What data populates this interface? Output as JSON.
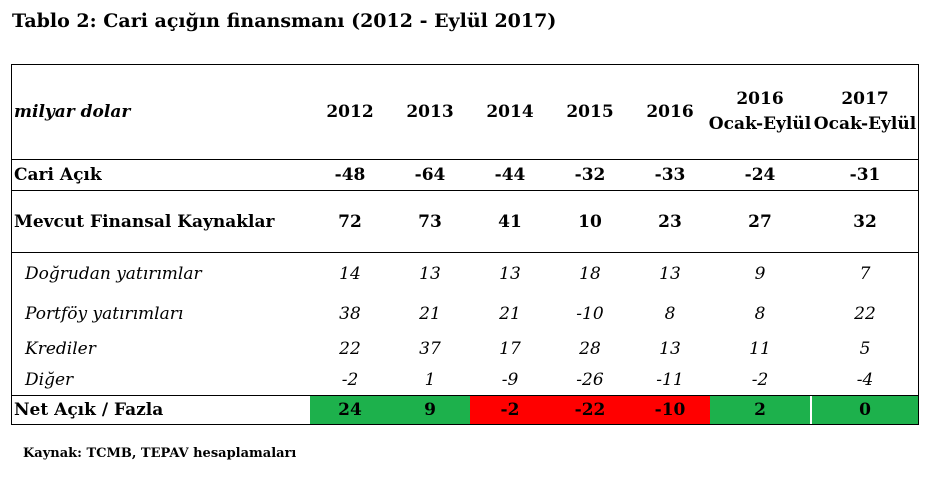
{
  "title": "Tablo 2: Cari açığın finansmanı (2012 - Eylül 2017)",
  "table": {
    "unit_label": "milyar dolar",
    "columns": [
      {
        "line1": "2012",
        "line2": ""
      },
      {
        "line1": "2013",
        "line2": ""
      },
      {
        "line1": "2014",
        "line2": ""
      },
      {
        "line1": "2015",
        "line2": ""
      },
      {
        "line1": "2016",
        "line2": ""
      },
      {
        "line1": "2016",
        "line2": "Ocak-Eylül"
      },
      {
        "line1": "2017",
        "line2": "Ocak-Eylül"
      }
    ],
    "rows": [
      {
        "label": "Cari Açık",
        "style": "bold",
        "values": [
          "-48",
          "-64",
          "-44",
          "-32",
          "-33",
          "-24",
          "-31"
        ]
      },
      {
        "label": "Mevcut Finansal Kaynaklar",
        "style": "bold",
        "values": [
          "72",
          "73",
          "41",
          "10",
          "23",
          "27",
          "32"
        ]
      },
      {
        "label": "Doğrudan yatırımlar",
        "style": "italic",
        "values": [
          "14",
          "13",
          "13",
          "18",
          "13",
          "9",
          "7"
        ]
      },
      {
        "label": "Portföy yatırımları",
        "style": "italic",
        "values": [
          "38",
          "21",
          "21",
          "-10",
          "8",
          "8",
          "22"
        ]
      },
      {
        "label": "Krediler",
        "style": "italic",
        "values": [
          "22",
          "37",
          "17",
          "28",
          "13",
          "11",
          "5"
        ]
      },
      {
        "label": "Diğer",
        "style": "italic",
        "values": [
          "-2",
          "1",
          "-9",
          "-26",
          "-11",
          "-2",
          "-4"
        ]
      },
      {
        "label": "Net Açık / Fazla",
        "style": "bold",
        "values": [
          "24",
          "9",
          "-2",
          "-22",
          "-10",
          "2",
          "0"
        ]
      }
    ],
    "net_cell_colors": [
      "#1db14c",
      "#1db14c",
      "#ff0000",
      "#ff0000",
      "#ff0000",
      "#1db14c",
      "#1db14c"
    ]
  },
  "source": "Kaynak: TCMB, TEPAV hesaplamaları"
}
